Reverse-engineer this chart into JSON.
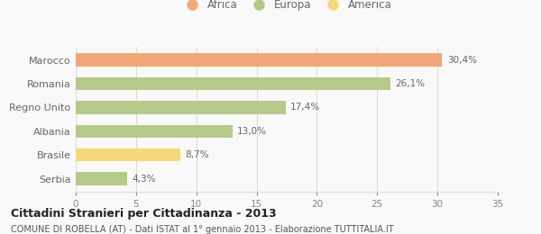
{
  "categories": [
    "Marocco",
    "Romania",
    "Regno Unito",
    "Albania",
    "Brasile",
    "Serbia"
  ],
  "values": [
    30.4,
    26.1,
    17.4,
    13.0,
    8.7,
    4.3
  ],
  "labels": [
    "30,4%",
    "26,1%",
    "17,4%",
    "13,0%",
    "8,7%",
    "4,3%"
  ],
  "bar_colors": [
    "#f0a878",
    "#b5c98a",
    "#b5c98a",
    "#b5c98a",
    "#f5d87a",
    "#b5c98a"
  ],
  "legend_items": [
    {
      "label": "Africa",
      "color": "#f0a878"
    },
    {
      "label": "Europa",
      "color": "#b5c98a"
    },
    {
      "label": "America",
      "color": "#f5d87a"
    }
  ],
  "xlim": [
    0,
    35
  ],
  "xticks": [
    0,
    5,
    10,
    15,
    20,
    25,
    30,
    35
  ],
  "title": "Cittadini Stranieri per Cittadinanza - 2013",
  "subtitle": "COMUNE DI ROBELLA (AT) - Dati ISTAT al 1° gennaio 2013 - Elaborazione TUTTITALIA.IT",
  "background_color": "#f9f9f9",
  "bar_height": 0.55,
  "grid_color": "#ddddcc",
  "label_color": "#666666",
  "tick_color": "#888888"
}
